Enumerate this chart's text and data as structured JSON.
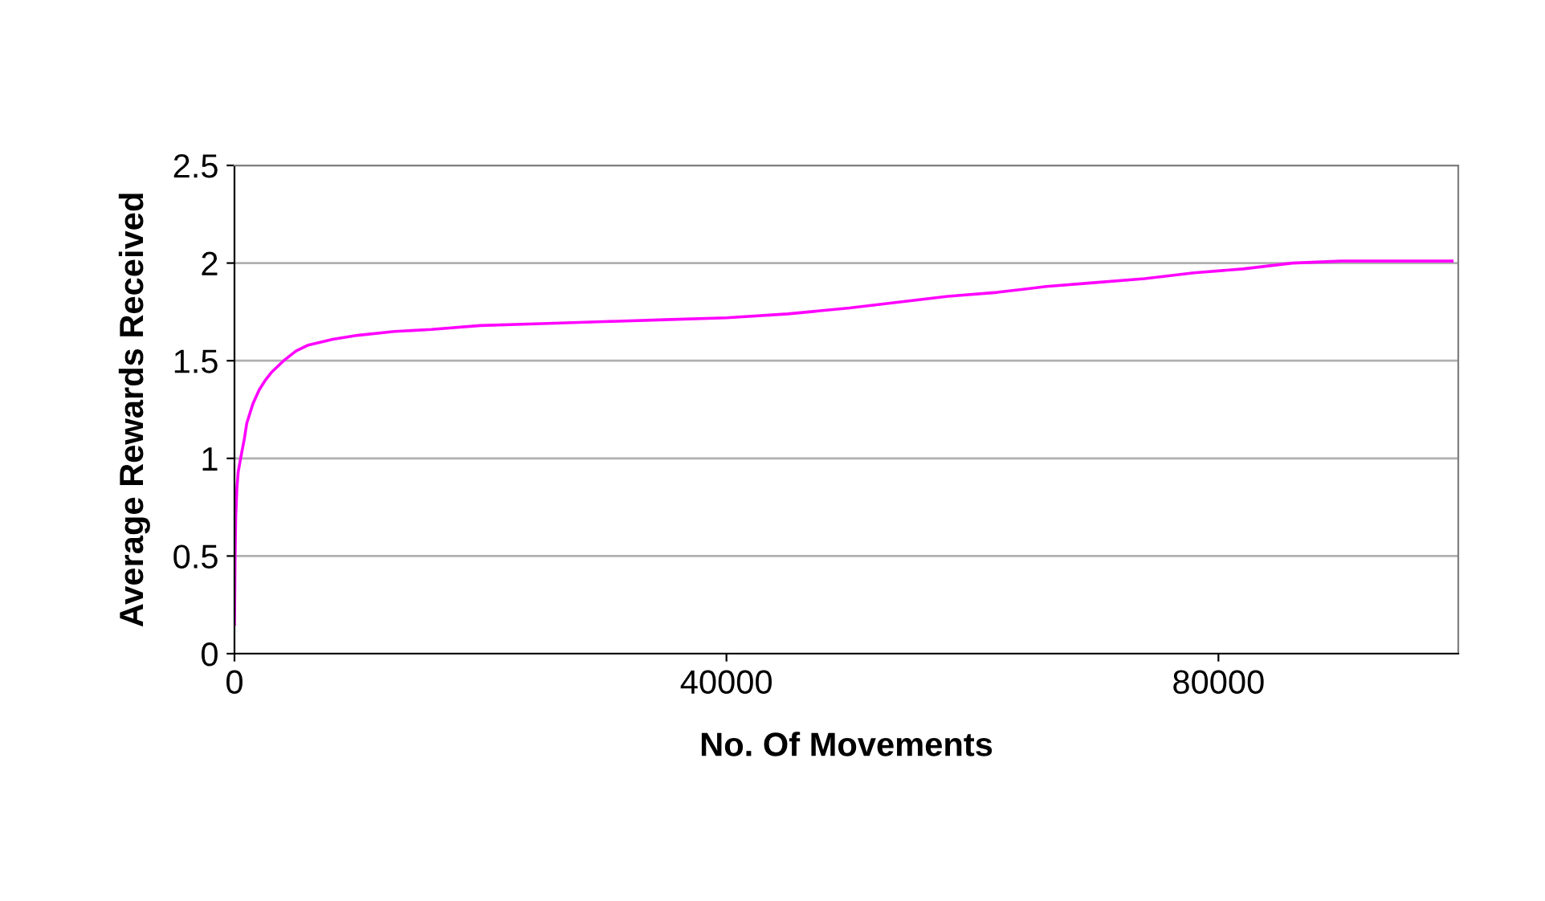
{
  "chart_data": {
    "type": "line",
    "xlabel": "No. Of Movements",
    "ylabel": "Average Rewards Received",
    "x": [
      0,
      50,
      100,
      200,
      300,
      500,
      800,
      1000,
      1500,
      2000,
      2500,
      3000,
      4000,
      5000,
      6000,
      8000,
      10000,
      13000,
      16000,
      20000,
      25000,
      30000,
      35000,
      40000,
      45000,
      50000,
      54000,
      58000,
      62000,
      66000,
      70000,
      74000,
      78000,
      82000,
      86000,
      90000,
      95000,
      99000
    ],
    "series": [
      {
        "color": "#ff00ff",
        "values": [
          0.15,
          0.5,
          0.7,
          0.85,
          0.93,
          1.0,
          1.1,
          1.18,
          1.28,
          1.35,
          1.4,
          1.44,
          1.5,
          1.55,
          1.58,
          1.61,
          1.63,
          1.65,
          1.66,
          1.68,
          1.69,
          1.7,
          1.71,
          1.72,
          1.74,
          1.77,
          1.8,
          1.83,
          1.85,
          1.88,
          1.9,
          1.92,
          1.95,
          1.97,
          2.0,
          2.01,
          2.01,
          2.01
        ]
      }
    ],
    "xlim": [
      0,
      99500
    ],
    "xticks": [
      0,
      40000,
      80000
    ],
    "ylim": [
      0,
      2.5
    ],
    "yticks": [
      0,
      0.5,
      1,
      1.5,
      2,
      2.5
    ],
    "grid": "y",
    "legend": false,
    "marker": "none",
    "line_style": "solid"
  }
}
